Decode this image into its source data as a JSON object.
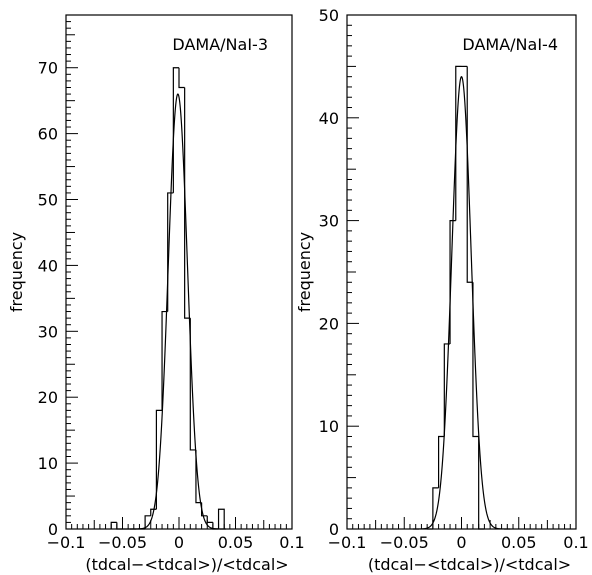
{
  "chart_data": [
    {
      "type": "histogram",
      "title": "DAMA/NaI-3",
      "xlabel": "(tdcal−<tdcal>)/<tdcal>",
      "ylabel": "frequency",
      "xlim": [
        -0.1,
        0.1
      ],
      "ylim": [
        0,
        78
      ],
      "xticks": [
        -0.1,
        -0.05,
        0,
        0.05,
        0.1
      ],
      "xtick_labels": [
        "−0.1",
        "−0.05",
        "0",
        "0.05",
        "0.1"
      ],
      "yticks": [
        0,
        10,
        20,
        30,
        40,
        50,
        60,
        70
      ],
      "yticks_labels": [
        "0",
        "10",
        "20",
        "30",
        "40",
        "50",
        "60",
        "70"
      ],
      "bin_width": 0.005,
      "bins": [
        {
          "x0": -0.06,
          "y": 1
        },
        {
          "x0": -0.055,
          "y": 0
        },
        {
          "x0": -0.05,
          "y": 0
        },
        {
          "x0": -0.045,
          "y": 0
        },
        {
          "x0": -0.04,
          "y": 0
        },
        {
          "x0": -0.035,
          "y": 0
        },
        {
          "x0": -0.03,
          "y": 2
        },
        {
          "x0": -0.025,
          "y": 3
        },
        {
          "x0": -0.02,
          "y": 18
        },
        {
          "x0": -0.015,
          "y": 33
        },
        {
          "x0": -0.01,
          "y": 51
        },
        {
          "x0": -0.005,
          "y": 70
        },
        {
          "x0": 0.0,
          "y": 67
        },
        {
          "x0": 0.005,
          "y": 32
        },
        {
          "x0": 0.01,
          "y": 12
        },
        {
          "x0": 0.015,
          "y": 4
        },
        {
          "x0": 0.02,
          "y": 2
        },
        {
          "x0": 0.025,
          "y": 1
        },
        {
          "x0": 0.03,
          "y": 0
        },
        {
          "x0": 0.035,
          "y": 3
        }
      ],
      "fit": {
        "type": "gaussian",
        "amplitude": 66,
        "mean": -0.001,
        "sigma": 0.0085
      }
    },
    {
      "type": "histogram",
      "title": "DAMA/NaI-4",
      "xlabel": "(tdcal−<tdcal>)/<tdcal>",
      "ylabel": "frequency",
      "xlim": [
        -0.1,
        0.1
      ],
      "ylim": [
        0,
        50
      ],
      "xticks": [
        -0.1,
        -0.05,
        0,
        0.05,
        0.1
      ],
      "xtick_labels": [
        "−0.1",
        "−0.05",
        "0",
        "0.05",
        "0.1"
      ],
      "yticks": [
        0,
        10,
        20,
        30,
        40,
        50
      ],
      "yticks_labels": [
        "0",
        "10",
        "20",
        "30",
        "40",
        "50"
      ],
      "bin_width": 0.005,
      "bins": [
        {
          "x0": -0.03,
          "y": 0
        },
        {
          "x0": -0.025,
          "y": 4
        },
        {
          "x0": -0.02,
          "y": 9
        },
        {
          "x0": -0.015,
          "y": 18
        },
        {
          "x0": -0.01,
          "y": 30
        },
        {
          "x0": -0.005,
          "y": 45
        },
        {
          "x0": 0.0,
          "y": 45
        },
        {
          "x0": 0.005,
          "y": 24
        },
        {
          "x0": 0.01,
          "y": 9
        },
        {
          "x0": 0.015,
          "y": 0
        }
      ],
      "fit": {
        "type": "gaussian",
        "amplitude": 44,
        "mean": 0.0,
        "sigma": 0.0085
      }
    }
  ]
}
